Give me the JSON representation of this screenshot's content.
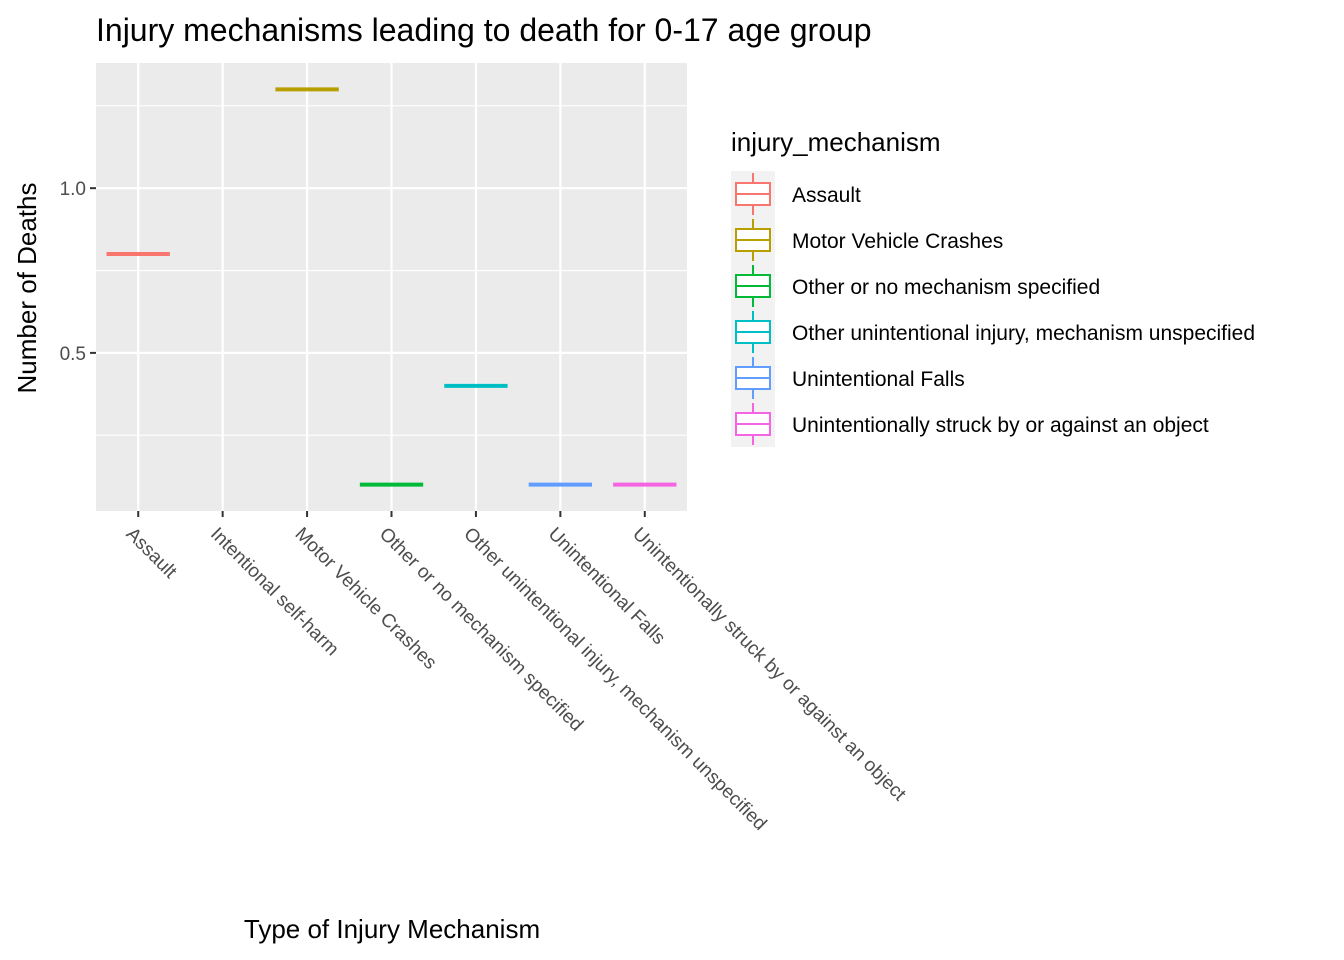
{
  "chart_data": {
    "type": "boxplot",
    "title": "Injury mechanisms leading to death for 0-17 age group",
    "xlabel": "Type of Injury Mechanism",
    "ylabel": "Number of Deaths",
    "categories": [
      "Assault",
      "Intentional self-harm",
      "Motor Vehicle Crashes",
      "Other or no mechanism specified",
      "Other unintentional injury, mechanism unspecified",
      "Unintentional Falls",
      "Unintentionally struck by or against an object"
    ],
    "values": [
      0.8,
      null,
      1.3,
      0.1,
      0.4,
      0.1,
      0.1
    ],
    "ylim": [
      0.02,
      1.38
    ],
    "yticks": [
      0.5,
      1.0
    ],
    "ytick_labels": [
      "0.5",
      "1.0"
    ],
    "grid": true,
    "legend": {
      "title": "injury_mechanism",
      "placement": "right",
      "entries": [
        {
          "name": "Assault",
          "color": "#F8766D"
        },
        {
          "name": "Motor Vehicle Crashes",
          "color": "#B79F00"
        },
        {
          "name": "Other or no mechanism specified",
          "color": "#00BA38"
        },
        {
          "name": "Other unintentional injury, mechanism unspecified",
          "color": "#00BFC4"
        },
        {
          "name": "Unintentional Falls",
          "color": "#619CFF"
        },
        {
          "name": "Unintentionally struck by or against an object",
          "color": "#F564E3"
        }
      ]
    },
    "colors": [
      "#F8766D",
      null,
      "#B79F00",
      "#00BA38",
      "#00BFC4",
      "#619CFF",
      "#F564E3"
    ],
    "panel_background": "#EBEBEB",
    "grid_color": "#FFFFFF"
  }
}
